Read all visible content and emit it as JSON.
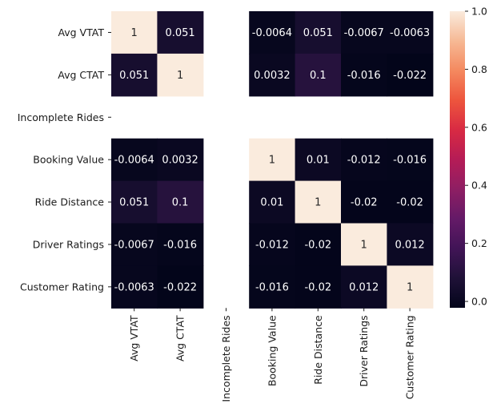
{
  "chart_data": {
    "type": "heatmap",
    "title": "",
    "xlabel": "",
    "ylabel": "",
    "x_labels": [
      "Avg VTAT",
      "Avg CTAT",
      "Incomplete Rides",
      "Booking Value",
      "Ride Distance",
      "Driver Ratings",
      "Customer Rating"
    ],
    "y_labels": [
      "Avg VTAT",
      "Avg CTAT",
      "Incomplete Rides",
      "Booking Value",
      "Ride Distance",
      "Driver Ratings",
      "Customer Rating"
    ],
    "values": [
      [
        1,
        0.051,
        null,
        -0.0064,
        0.051,
        -0.0067,
        -0.0063
      ],
      [
        0.051,
        1,
        null,
        0.0032,
        0.1,
        -0.016,
        -0.022
      ],
      [
        null,
        null,
        null,
        null,
        null,
        null,
        null
      ],
      [
        -0.0064,
        0.0032,
        null,
        1,
        0.01,
        -0.012,
        -0.016
      ],
      [
        0.051,
        0.1,
        null,
        0.01,
        1,
        -0.02,
        -0.02
      ],
      [
        -0.0067,
        -0.016,
        null,
        -0.012,
        -0.02,
        1,
        0.012
      ],
      [
        -0.0063,
        -0.022,
        null,
        -0.016,
        -0.02,
        0.012,
        1
      ]
    ],
    "annotations": [
      [
        "1",
        "0.051",
        "",
        "-0.0064",
        "0.051",
        "-0.0067",
        "-0.0063"
      ],
      [
        "0.051",
        "1",
        "",
        "0.0032",
        "0.1",
        "-0.016",
        "-0.022"
      ],
      [
        "",
        "",
        "",
        "",
        "",
        "",
        ""
      ],
      [
        "-0.0064",
        "0.0032",
        "",
        "1",
        "0.01",
        "-0.012",
        "-0.016"
      ],
      [
        "0.051",
        "0.1",
        "",
        "0.01",
        "1",
        "-0.02",
        "-0.02"
      ],
      [
        "-0.0067",
        "-0.016",
        "",
        "-0.012",
        "-0.02",
        "1",
        "0.012"
      ],
      [
        "-0.0063",
        "-0.022",
        "",
        "-0.016",
        "-0.02",
        "0.012",
        "1"
      ]
    ],
    "colormap": "rocket",
    "vmin": -0.022,
    "vmax": 1,
    "colorbar": {
      "ticks": [
        0.0,
        0.2,
        0.4,
        0.6,
        0.8,
        1.0
      ],
      "tick_labels": [
        "0.0",
        "0.2",
        "0.4",
        "0.6",
        "0.8",
        "1.0"
      ]
    },
    "legend_placement": "right"
  }
}
